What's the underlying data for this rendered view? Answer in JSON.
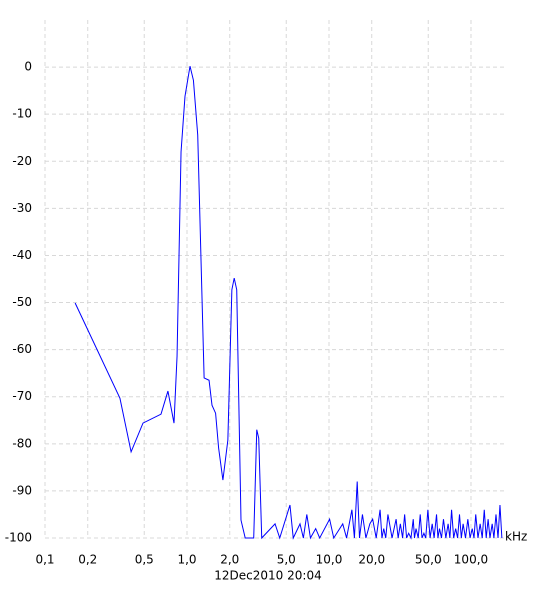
{
  "chart_data": {
    "type": "line",
    "log_x": true,
    "grid": true,
    "color": "#0000ff",
    "x_label": "kHz",
    "footer": "12Dec2010  20:04",
    "xlim": [
      0.1,
      175
    ],
    "ylim": [
      -100,
      10
    ],
    "xticks": [
      {
        "value": 0.1,
        "label": "0,1"
      },
      {
        "value": 0.2,
        "label": "0,2"
      },
      {
        "value": 0.5,
        "label": "0,5"
      },
      {
        "value": 1,
        "label": "1,0"
      },
      {
        "value": 2,
        "label": "2,0"
      },
      {
        "value": 5,
        "label": "5,0"
      },
      {
        "value": 10,
        "label": "10,0"
      },
      {
        "value": 20,
        "label": "20,0"
      },
      {
        "value": 50,
        "label": "50,0"
      },
      {
        "value": 100,
        "label": "100,0"
      }
    ],
    "yticks": [
      0,
      -10,
      -20,
      -30,
      -40,
      -50,
      -60,
      -70,
      -80,
      -90,
      -100
    ],
    "x": [
      0.163,
      0.337,
      0.404,
      0.49,
      0.656,
      0.734,
      0.81,
      0.851,
      0.908,
      0.968,
      1.05,
      1.11,
      1.19,
      1.32,
      1.43,
      1.5,
      1.59,
      1.67,
      1.79,
      1.94,
      2.07,
      2.15,
      2.24,
      2.4,
      2.57,
      2.95,
      3.1,
      3.2,
      3.36,
      4.17,
      4.5,
      5.31,
      5.6,
      6.25,
      6.6,
      6.98,
      7.4,
      8.06,
      8.6,
      10.1,
      10.8,
      12.5,
      13.3,
      14.5,
      15.1,
      15.8,
      16.4,
      17.2,
      18.2,
      19.4,
      20.3,
      21.5,
      22.9,
      23.6,
      24.3,
      25.1,
      26.0,
      27.8,
      29.7,
      30.7,
      31.8,
      33,
      34.1,
      35.2,
      36.4,
      37.8,
      39.2,
      40,
      41,
      42.5,
      43.9,
      45.2,
      46.6,
      48,
      49.7,
      51.5,
      53.3,
      55,
      57.2,
      58.5,
      60,
      62,
      64,
      66.5,
      69,
      71,
      73,
      75.5,
      78,
      80.5,
      83,
      85.5,
      88,
      91.5,
      95,
      98.5,
      102,
      105,
      108,
      112,
      116,
      120,
      124,
      128,
      132,
      136,
      141,
      145,
      150,
      155,
      160,
      165
    ],
    "values": [
      -50.1,
      -70.3,
      -81.7,
      -75.6,
      -73.7,
      -68.8,
      -75.6,
      -61.4,
      -18,
      -6.2,
      0.2,
      -2.8,
      -14.4,
      -66,
      -66.5,
      -71.8,
      -73.5,
      -80.9,
      -87.7,
      -79.2,
      -47.3,
      -44.8,
      -47.3,
      -96.2,
      -100,
      -100,
      -77,
      -78.8,
      -100,
      -97,
      -100,
      -93,
      -100,
      -97,
      -100,
      -95,
      -100,
      -98,
      -100,
      -96,
      -100,
      -97,
      -100,
      -94,
      -100,
      -88,
      -100,
      -95,
      -100,
      -97,
      -96,
      -100,
      -94,
      -100,
      -98,
      -100,
      -95,
      -100,
      -96,
      -100,
      -97,
      -100,
      -95,
      -100,
      -99,
      -100,
      -96,
      -100,
      -98,
      -100,
      -95,
      -100,
      -99,
      -100,
      -94,
      -100,
      -97,
      -100,
      -95,
      -100,
      -98,
      -100,
      -96,
      -100,
      -97,
      -100,
      -94,
      -100,
      -98,
      -100,
      -95,
      -100,
      -97,
      -100,
      -96,
      -100,
      -98,
      -100,
      -95,
      -100,
      -97,
      -100,
      -94,
      -100,
      -96,
      -100,
      -97,
      -100,
      -95,
      -100,
      -93,
      -100
    ]
  }
}
